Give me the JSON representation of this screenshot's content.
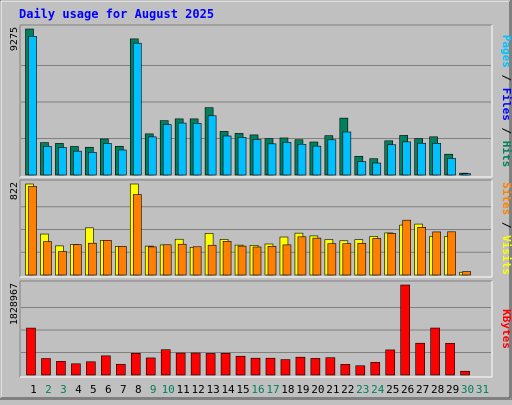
{
  "chart_data": [
    {
      "type": "bar",
      "title": "Daily usage for August 2025",
      "categories": [
        "1",
        "2",
        "3",
        "4",
        "5",
        "6",
        "7",
        "8",
        "9",
        "10",
        "11",
        "12",
        "13",
        "14",
        "15",
        "16",
        "17",
        "18",
        "19",
        "20",
        "21",
        "22",
        "23",
        "24",
        "25",
        "26",
        "27",
        "28",
        "29",
        "30",
        "31"
      ],
      "weekend_days": [
        "2",
        "3",
        "9",
        "10",
        "16",
        "17",
        "23",
        "24",
        "30",
        "31"
      ],
      "ymax_label": "9275",
      "ylim": [
        0,
        9275
      ],
      "grid": true,
      "series": [
        {
          "name": "Hits",
          "color": "#00805c",
          "values": [
            9275,
            2059,
            2007,
            1812,
            1762,
            2289,
            1825,
            8646,
            2612,
            3454,
            3566,
            3566,
            4278,
            2771,
            2644,
            2547,
            2308,
            2353,
            2240,
            2096,
            2498,
            3614,
            1190,
            1035,
            2173,
            2513,
            2308,
            2426,
            1320,
            116,
            0
          ]
        },
        {
          "name": "Files",
          "color": "#0000ff",
          "values": [
            8809,
            1814,
            1748,
            1514,
            1441,
            2005,
            1589,
            8374,
            2422,
            3207,
            3299,
            3281,
            3762,
            2478,
            2387,
            2254,
            1980,
            2073,
            1951,
            1832,
            2238,
            2732,
            851,
            761,
            1922,
            2104,
            2017,
            2014,
            1050,
            85,
            0
          ]
        },
        {
          "name": "Pages",
          "color": "#00c0ff",
          "values": [
            8809,
            1814,
            1748,
            1514,
            1441,
            2005,
            1589,
            8374,
            2422,
            3207,
            3299,
            3281,
            3762,
            2478,
            2387,
            2254,
            1980,
            2073,
            1951,
            1832,
            2238,
            2732,
            851,
            761,
            1922,
            2104,
            2017,
            2014,
            1050,
            85,
            0
          ]
        }
      ]
    },
    {
      "type": "bar",
      "ymax_label": "822",
      "ylim": [
        0,
        822
      ],
      "grid": true,
      "series": [
        {
          "name": "Visits",
          "color": "#ffff00",
          "values": [
            822,
            370,
            263,
            275,
            426,
            313,
            258,
            822,
            261,
            272,
            323,
            250,
            376,
            321,
            270,
            268,
            280,
            343,
            378,
            353,
            320,
            309,
            319,
            348,
            380,
            451,
            460,
            349,
            349,
            25,
            0
          ]
        },
        {
          "name": "Sites",
          "color": "#ff8000",
          "values": [
            800,
            302,
            212,
            274,
            287,
            313,
            259,
            727,
            254,
            273,
            278,
            255,
            269,
            304,
            261,
            253,
            259,
            272,
            345,
            333,
            283,
            283,
            286,
            330,
            375,
            495,
            431,
            389,
            390,
            31,
            0
          ]
        }
      ]
    },
    {
      "type": "bar",
      "ymax_label": "1828967",
      "ylim": [
        0,
        1828967
      ],
      "grid": true,
      "series": [
        {
          "name": "KBytes",
          "color": "#ff0000",
          "values": [
            953170,
            334565,
            277498,
            227856,
            268656,
            388931,
            218131,
            440811,
            346612,
            513958,
            445778,
            446767,
            437928,
            441771,
            381305,
            341221,
            341305,
            313004,
            361722,
            337111,
            352049,
            216711,
            187736,
            256880,
            509713,
            1828967,
            646049,
            954200,
            643829,
            76451,
            0
          ]
        }
      ]
    }
  ],
  "legend_labels": {
    "panel1": [
      {
        "text": "Pages",
        "color": "#00c0ff"
      },
      {
        "text": "Files",
        "color": "#0000ff"
      },
      {
        "text": "Hits",
        "color": "#00805c"
      }
    ],
    "panel2": [
      {
        "text": "Sites",
        "color": "#ff8000"
      },
      {
        "text": "Visits",
        "color": "#ffff00"
      }
    ],
    "panel3": [
      {
        "text": "KBytes",
        "color": "#ff0000"
      }
    ]
  },
  "colors": {
    "background": "#c0c0c0",
    "title": "#0000ff",
    "weekday_label": "#000000",
    "weekend_label": "#00805c"
  }
}
